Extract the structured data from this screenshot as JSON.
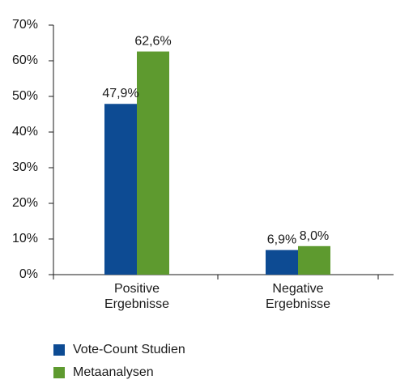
{
  "chart_data": {
    "type": "bar",
    "categories": [
      "Positive\nErgebnisse",
      "Negative\nErgebnisse"
    ],
    "series": [
      {
        "name": "Vote-Count Studien",
        "values": [
          47.9,
          6.9
        ],
        "labels": [
          "47,9%",
          "6,9%"
        ],
        "color": "#0d4b93"
      },
      {
        "name": "Metaanalysen",
        "values": [
          62.6,
          8.0
        ],
        "labels": [
          "62,6%",
          "8,0%"
        ],
        "color": "#5e9a2f"
      }
    ],
    "ylim": [
      0,
      70
    ],
    "yticks": [
      0,
      10,
      20,
      30,
      40,
      50,
      60,
      70
    ],
    "ytick_labels": [
      "0%",
      "10%",
      "20%",
      "30%",
      "40%",
      "50%",
      "60%",
      "70%"
    ],
    "grid": false,
    "legend_position": "bottom-left"
  }
}
